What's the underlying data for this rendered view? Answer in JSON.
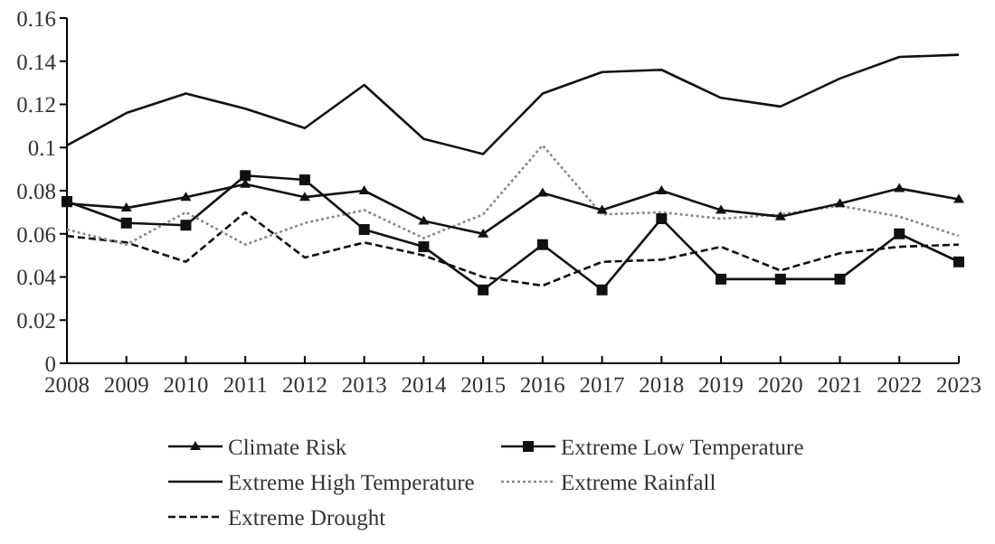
{
  "chart_data": {
    "type": "line",
    "categories": [
      "2008",
      "2009",
      "2010",
      "2011",
      "2012",
      "2013",
      "2014",
      "2015",
      "2016",
      "2017",
      "2018",
      "2019",
      "2020",
      "2021",
      "2022",
      "2023"
    ],
    "ylim": [
      0,
      0.16
    ],
    "yticks": [
      0,
      0.02,
      0.04,
      0.06,
      0.08,
      {
        "value": 0.1,
        "label": "0.1"
      },
      0.12,
      0.14,
      0.16
    ],
    "legend": "bottom",
    "grid": false,
    "series": [
      {
        "name": "Climate Risk",
        "color": "#111111",
        "marker": "triangle",
        "line_style": "solid",
        "values": [
          0.074,
          0.072,
          0.077,
          0.083,
          0.077,
          0.08,
          0.066,
          0.06,
          0.079,
          0.071,
          0.08,
          0.071,
          0.068,
          0.074,
          0.081,
          0.076
        ]
      },
      {
        "name": "Extreme Low Temperature",
        "color": "#111111",
        "marker": "square",
        "line_style": "solid",
        "values": [
          0.075,
          0.065,
          0.064,
          0.087,
          0.085,
          0.062,
          0.054,
          0.034,
          0.055,
          0.034,
          0.067,
          0.039,
          0.039,
          0.039,
          0.06,
          0.047
        ]
      },
      {
        "name": "Extreme High Temperature",
        "color": "#111111",
        "marker": "none",
        "line_style": "solid",
        "values": [
          0.101,
          0.116,
          0.125,
          0.118,
          0.109,
          0.129,
          0.104,
          0.097,
          0.125,
          0.135,
          0.136,
          0.123,
          0.119,
          0.132,
          0.142,
          0.143
        ]
      },
      {
        "name": "Extreme Rainfall",
        "color": "#888888",
        "marker": "none",
        "line_style": "dotted",
        "values": [
          0.062,
          0.055,
          0.07,
          0.055,
          0.065,
          0.071,
          0.058,
          0.069,
          0.101,
          0.069,
          0.07,
          0.067,
          0.069,
          0.073,
          0.068,
          0.059
        ]
      },
      {
        "name": "Extreme Drought",
        "color": "#111111",
        "marker": "none",
        "line_style": "dashed",
        "values": [
          0.059,
          0.056,
          0.047,
          0.07,
          0.049,
          0.056,
          0.05,
          0.04,
          0.036,
          0.047,
          0.048,
          0.054,
          0.043,
          0.051,
          0.054,
          0.055
        ]
      }
    ]
  }
}
